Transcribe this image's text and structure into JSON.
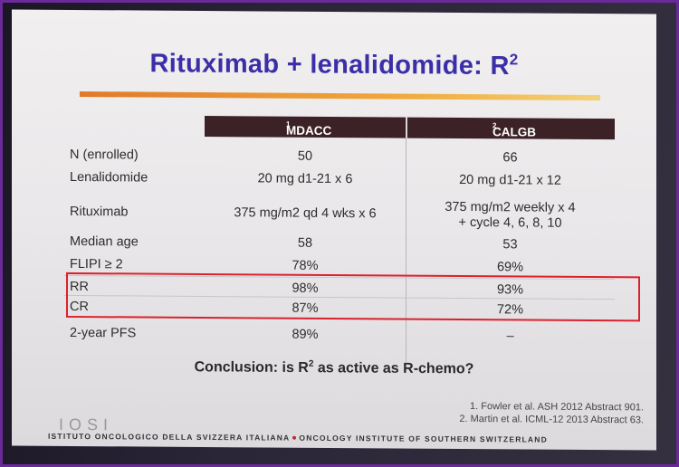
{
  "slide": {
    "title_main": "Rituximab + lenalidomide: R",
    "title_sup": "2",
    "header": {
      "col1": "MDACC",
      "col1_sup": "1",
      "col2": "CALGB",
      "col2_sup": "2"
    },
    "rows": [
      {
        "label": "N (enrolled)",
        "mdacc": "50",
        "calgb": "66"
      },
      {
        "label": "Lenalidomide",
        "mdacc": "20 mg d1-21 x 6",
        "calgb": "20 mg d1-21 x 12"
      },
      {
        "label": "Rituximab",
        "mdacc": "375 mg/m2 qd 4 wks x 6",
        "calgb": "375 mg/m2 weekly x 4",
        "calgb2": "+ cycle 4, 6, 8, 10"
      },
      {
        "label": "Median age",
        "mdacc": "58",
        "calgb": "53"
      },
      {
        "label": "FLIPI ≥ 2",
        "mdacc": "78%",
        "calgb": "69%"
      },
      {
        "label": "RR",
        "mdacc": "98%",
        "calgb": "93%"
      },
      {
        "label": "CR",
        "mdacc": "87%",
        "calgb": "72%"
      },
      {
        "label": "2-year PFS",
        "mdacc": "89%",
        "calgb": "–"
      }
    ],
    "conclusion_a": "Conclusion: is R",
    "conclusion_sup": "2",
    "conclusion_b": " as active as R-chemo?",
    "ref1": "1. Fowler et al. ASH 2012 Abstract 901.",
    "ref2": "2. Martin et al. ICML-12 2013 Abstract 63.",
    "logo": "IOSI",
    "footer_left": "ISTITUTO ONCOLOGICO DELLA SVIZZERA ITALIANA",
    "footer_right": "ONCOLOGY INSTITUTE OF SOUTHERN SWITZERLAND"
  },
  "colors": {
    "title": "#3b2fa8",
    "header_bg": "#3c2226",
    "highlight_box": "#d9222e",
    "frame": "#6a2a9a"
  }
}
